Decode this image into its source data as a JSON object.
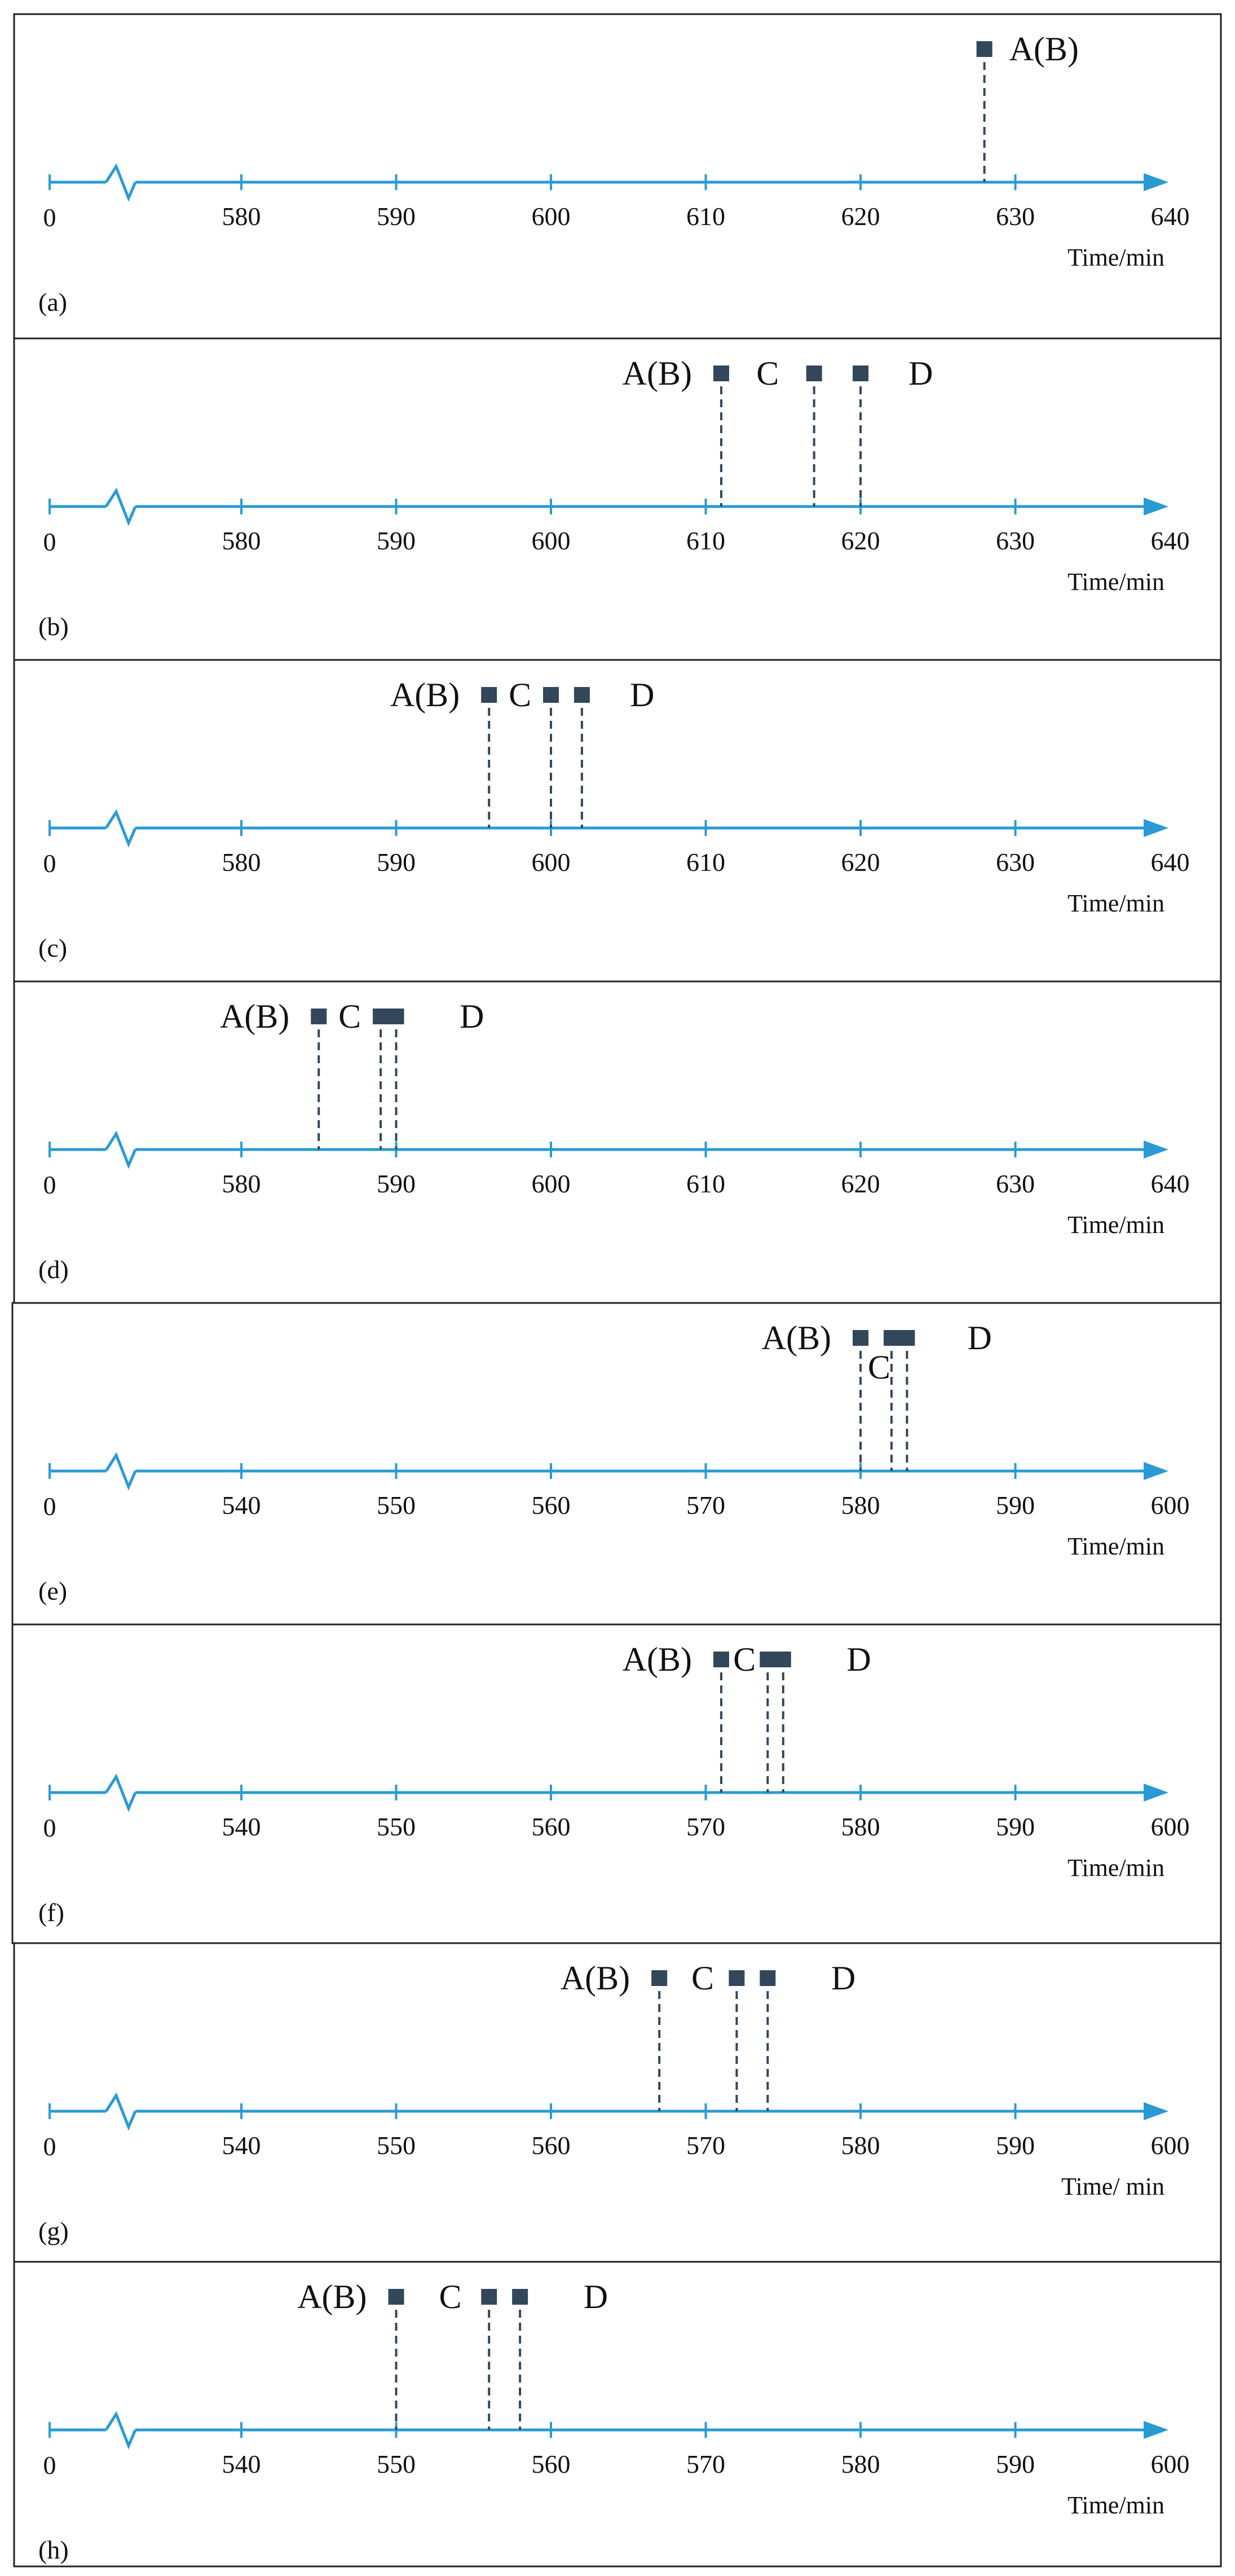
{
  "colors": {
    "axis": "#2a9ad5",
    "marker": "#33475b",
    "text": "#111111",
    "border": "#222222"
  },
  "icons": {
    "marker": "square-marker-icon",
    "axis_break": "zigzag-break-icon",
    "arrow": "arrow-head-icon"
  },
  "panels": [
    {
      "label": "(a)",
      "origin_label": "0",
      "unit_label": "Time/min",
      "ticks": [
        580,
        590,
        600,
        610,
        620,
        630,
        640
      ],
      "markers": [
        628
      ],
      "event_labels": [
        {
          "text": "A(B)",
          "at": 628,
          "side": "right"
        }
      ]
    },
    {
      "label": "(b)",
      "origin_label": "0",
      "unit_label": "Time/min",
      "ticks": [
        580,
        590,
        600,
        610,
        620,
        630,
        640
      ],
      "markers": [
        611,
        617,
        620
      ],
      "event_labels": [
        {
          "text": "A(B)",
          "at": 611,
          "side": "left"
        },
        {
          "text": "C",
          "at": 614,
          "side": "center"
        },
        {
          "text": "D",
          "at": 621.5,
          "side": "right"
        }
      ]
    },
    {
      "label": "(c)",
      "origin_label": "0",
      "unit_label": "Time/min",
      "ticks": [
        580,
        590,
        600,
        610,
        620,
        630,
        640
      ],
      "markers": [
        596,
        600,
        602
      ],
      "event_labels": [
        {
          "text": "A(B)",
          "at": 596,
          "side": "left"
        },
        {
          "text": "C",
          "at": 598,
          "side": "center"
        },
        {
          "text": "D",
          "at": 603.5,
          "side": "right"
        }
      ]
    },
    {
      "label": "(d)",
      "origin_label": "0",
      "unit_label": "Time/min",
      "ticks": [
        580,
        590,
        600,
        610,
        620,
        630,
        640
      ],
      "markers": [
        585,
        589,
        590
      ],
      "event_labels": [
        {
          "text": "A(B)",
          "at": 585,
          "side": "left"
        },
        {
          "text": "C",
          "at": 587,
          "side": "center"
        },
        {
          "text": "D",
          "at": 592.5,
          "side": "right"
        }
      ]
    },
    {
      "label": "(e)",
      "origin_label": "0",
      "unit_label": "Time/min",
      "ticks": [
        540,
        550,
        560,
        570,
        580,
        590,
        600
      ],
      "markers": [
        580,
        582,
        583
      ],
      "event_labels": [
        {
          "text": "A(B)",
          "at": 580,
          "side": "left"
        },
        {
          "text": "C",
          "at": 581.2,
          "side": "below"
        },
        {
          "text": "D",
          "at": 585.3,
          "side": "right"
        }
      ]
    },
    {
      "label": "(f)",
      "origin_label": "0",
      "unit_label": "Time/min",
      "ticks": [
        540,
        550,
        560,
        570,
        580,
        590,
        600
      ],
      "markers": [
        571,
        574,
        575
      ],
      "event_labels": [
        {
          "text": "A(B)",
          "at": 571,
          "side": "left"
        },
        {
          "text": "C",
          "at": 572.5,
          "side": "center"
        },
        {
          "text": "D",
          "at": 577.5,
          "side": "right"
        }
      ]
    },
    {
      "label": "(g)",
      "origin_label": "0",
      "unit_label": "Time/ min",
      "ticks": [
        540,
        550,
        560,
        570,
        580,
        590,
        600
      ],
      "markers": [
        567,
        572,
        574
      ],
      "event_labels": [
        {
          "text": "A(B)",
          "at": 567,
          "side": "left"
        },
        {
          "text": "C",
          "at": 569.8,
          "side": "center"
        },
        {
          "text": "D",
          "at": 576.5,
          "side": "right"
        }
      ]
    },
    {
      "label": "(h)",
      "origin_label": "0",
      "unit_label": "Time/min",
      "ticks": [
        540,
        550,
        560,
        570,
        580,
        590,
        600
      ],
      "markers": [
        550,
        556,
        558
      ],
      "event_labels": [
        {
          "text": "A(B)",
          "at": 550,
          "side": "left"
        },
        {
          "text": "C",
          "at": 553.5,
          "side": "center"
        },
        {
          "text": "D",
          "at": 560.5,
          "side": "right"
        }
      ]
    }
  ]
}
